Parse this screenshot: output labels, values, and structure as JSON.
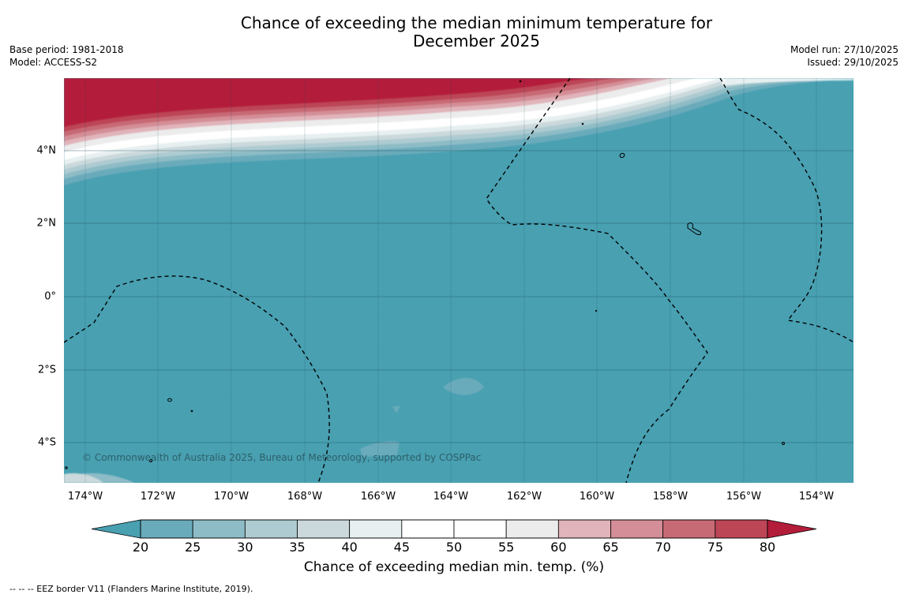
{
  "title": {
    "line1": "Chance of exceeding the median minimum temperature for",
    "line2": "December 2025"
  },
  "meta": {
    "base_period": "Base period: 1981-2018",
    "model": "Model: ACCESS-S2",
    "model_run": "Model run: 27/10/2025",
    "issued": "Issued: 29/10/2025"
  },
  "map": {
    "lat_labels": [
      "4°N",
      "2°N",
      "0°",
      "2°S",
      "4°S"
    ],
    "lon_labels": [
      "174°W",
      "172°W",
      "170°W",
      "168°W",
      "166°W",
      "164°W",
      "162°W",
      "160°W",
      "158°W",
      "156°W",
      "154°W"
    ],
    "copyright": "© Commonwealth of Australia 2025, Bureau of Meteorology, supported by COSPPac",
    "ocean_color": "#48a0b1"
  },
  "colorbar": {
    "ticks": [
      "20",
      "25",
      "30",
      "35",
      "40",
      "45",
      "50",
      "55",
      "60",
      "65",
      "70",
      "75",
      "80"
    ],
    "colors": [
      "#6aabbb",
      "#8dbcc6",
      "#adcbd1",
      "#cbd9dc",
      "#e7eff0",
      "#ffffff",
      "#ffffff",
      "#ececec",
      "#e0b4ba",
      "#d48e97",
      "#c86a76",
      "#bc4556"
    ],
    "low_color": "#48a0b1",
    "high_color": "#b31d3a",
    "label": "Chance of exceeding median min. temp. (%)"
  },
  "footnote": "-- -- -- EEZ border V11 (Flanders Marine Institute, 2019)."
}
